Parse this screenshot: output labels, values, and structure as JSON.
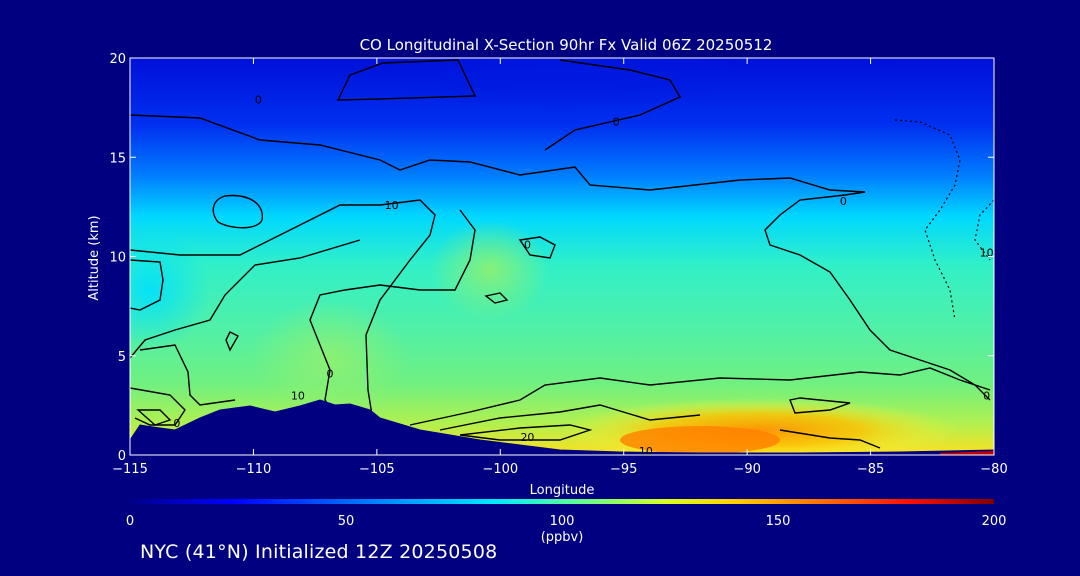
{
  "chart_data": {
    "type": "heatmap",
    "title": "CO Longitudinal X-Section 90hr  Fx Valid 06Z 20250512",
    "xlabel": "Longitude",
    "ylabel": "Altitude (km)",
    "xlim": [
      -115,
      -80
    ],
    "ylim": [
      0,
      20
    ],
    "x_ticks": [
      -115,
      -110,
      -105,
      -100,
      -95,
      -90,
      -85,
      -80
    ],
    "x_tick_labels": [
      "−115",
      "−110",
      "−105",
      "−100",
      "−95",
      "−90",
      "−85",
      "−80"
    ],
    "y_ticks": [
      0,
      5,
      10,
      15,
      20
    ],
    "y_tick_labels": [
      "0",
      "5",
      "10",
      "15",
      "20"
    ],
    "colorbar": {
      "min": 0,
      "max": 200,
      "ticks": [
        0,
        50,
        100,
        150,
        200
      ],
      "tick_labels": [
        "0",
        "50",
        "100",
        "150",
        "200"
      ],
      "unit_label": "(ppbv)",
      "colors": [
        "#00008b",
        "#0000ff",
        "#00bfff",
        "#00ffd0",
        "#7fff7f",
        "#ffff00",
        "#ff8c00",
        "#ff0000",
        "#8b0000"
      ]
    },
    "contour_labels": [
      {
        "text": "0",
        "lon": -109.8,
        "alt": 17.9
      },
      {
        "text": "0",
        "lon": -95.3,
        "alt": 16.8
      },
      {
        "text": "10",
        "lon": -104.4,
        "alt": 12.6
      },
      {
        "text": "0",
        "lon": -86.1,
        "alt": 12.8
      },
      {
        "text": "10",
        "lon": -80.3,
        "alt": 10.2
      },
      {
        "text": "0",
        "lon": -98.9,
        "alt": 10.6
      },
      {
        "text": "0",
        "lon": -106.9,
        "alt": 4.1
      },
      {
        "text": "10",
        "lon": -108.2,
        "alt": 3.0
      },
      {
        "text": "0",
        "lon": -80.3,
        "alt": 3.0
      },
      {
        "text": "20",
        "lon": -98.9,
        "alt": 0.9
      },
      {
        "text": "10",
        "lon": -94.1,
        "alt": 0.2
      },
      {
        "text": "0",
        "lon": -113.1,
        "alt": 1.6
      }
    ]
  },
  "footer": {
    "initialized_text": "NYC (41°N) Initialized 12Z 20250508"
  }
}
